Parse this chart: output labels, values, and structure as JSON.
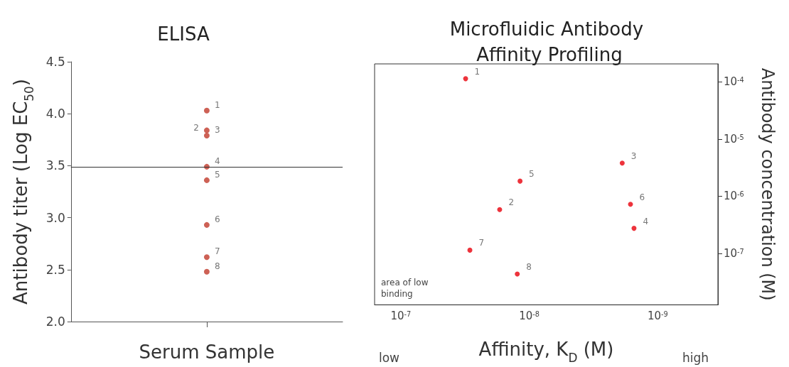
{
  "chart_data": [
    {
      "type": "scatter",
      "title": "ELISA",
      "xlabel": "Serum Sample",
      "ylabel": "Antibody titer (Log EC$_{50}$)",
      "categories": [
        null
      ],
      "series": [
        {
          "name": "1",
          "color": "#c0392b",
          "values": [
            4.03
          ]
        },
        {
          "name": "2",
          "color": "#c0392b",
          "values": [
            3.84
          ]
        },
        {
          "name": "3",
          "color": "#c0392b",
          "values": [
            3.79
          ]
        },
        {
          "name": "4",
          "color": "#c0392b",
          "values": [
            3.49
          ]
        },
        {
          "name": "5",
          "color": "#c0392b",
          "values": [
            3.36
          ]
        },
        {
          "name": "6",
          "color": "#c0392b",
          "values": [
            2.93
          ]
        },
        {
          "name": "7",
          "color": "#c0392b",
          "values": [
            2.62
          ]
        },
        {
          "name": "8",
          "color": "#c0392b",
          "values": [
            2.48
          ]
        }
      ],
      "ylim": [
        2.0,
        4.5
      ],
      "yticks": [
        {
          "value": 2.0,
          "label": "2.0"
        },
        {
          "value": 2.5,
          "label": "2.5"
        },
        {
          "value": 3.0,
          "label": "3.0"
        },
        {
          "value": 3.5,
          "label": "3.5"
        },
        {
          "value": 4.0,
          "label": "4.0"
        },
        {
          "value": 4.5,
          "label": "4.5"
        }
      ],
      "ref_lines": [
        {
          "axis": "y",
          "value": 3.49,
          "label": null,
          "color": "#333333"
        }
      ],
      "grid": false,
      "legend": false,
      "marker": "circle"
    },
    {
      "type": "scatter",
      "title": "Microfluidic Antibody Affinity Profiling",
      "xlabel": "Affinity, K$_{D}$ (M)",
      "ylabel": "Antibody concentration (M)",
      "log": "xy",
      "series": [
        {
          "name": "1",
          "color": "#e8000b",
          "x": [
            3.13e-08
          ],
          "values": [
            0.000114
          ]
        },
        {
          "name": "2",
          "color": "#e8000b",
          "x": [
            1.7e-08
          ],
          "values": [
            5.85e-07
          ]
        },
        {
          "name": "3",
          "color": "#e8000b",
          "x": [
            1.89e-09
          ],
          "values": [
            3.8e-06
          ]
        },
        {
          "name": "4",
          "color": "#e8000b",
          "x": [
            1.53e-09
          ],
          "values": [
            2.75e-07
          ]
        },
        {
          "name": "5",
          "color": "#e8000b",
          "x": [
            1.18e-08
          ],
          "values": [
            1.84e-06
          ]
        },
        {
          "name": "6",
          "color": "#e8000b",
          "x": [
            1.63e-09
          ],
          "values": [
            7.24e-07
          ]
        },
        {
          "name": "7",
          "color": "#e8000b",
          "x": [
            2.9e-08
          ],
          "values": [
            1.14e-07
          ]
        },
        {
          "name": "8",
          "color": "#e8000b",
          "x": [
            1.24e-08
          ],
          "values": [
            4.35e-08
          ]
        }
      ],
      "xlim": [
        1.6e-07,
        3.4e-10
      ],
      "xticks": [
        {
          "value": 1e-07,
          "label": "10$^{-7}$"
        },
        {
          "value": 1e-08,
          "label": "10$^{-8}$"
        },
        {
          "value": 1e-09,
          "label": "10$^{-9}$"
        }
      ],
      "ylim": [
        1.26e-08,
        0.000207
      ],
      "yticks": [
        {
          "value": 1e-07,
          "label": "10$^{-7}$"
        },
        {
          "value": 1e-06,
          "label": "10$^{-6}$"
        },
        {
          "value": 1e-05,
          "label": "10$^{-5}$"
        },
        {
          "value": 0.0001,
          "label": "10$^{-4}$"
        }
      ],
      "annotations": [
        "low",
        "high",
        "area of low binding"
      ],
      "grid": false,
      "legend": false,
      "marker": "circle"
    }
  ]
}
